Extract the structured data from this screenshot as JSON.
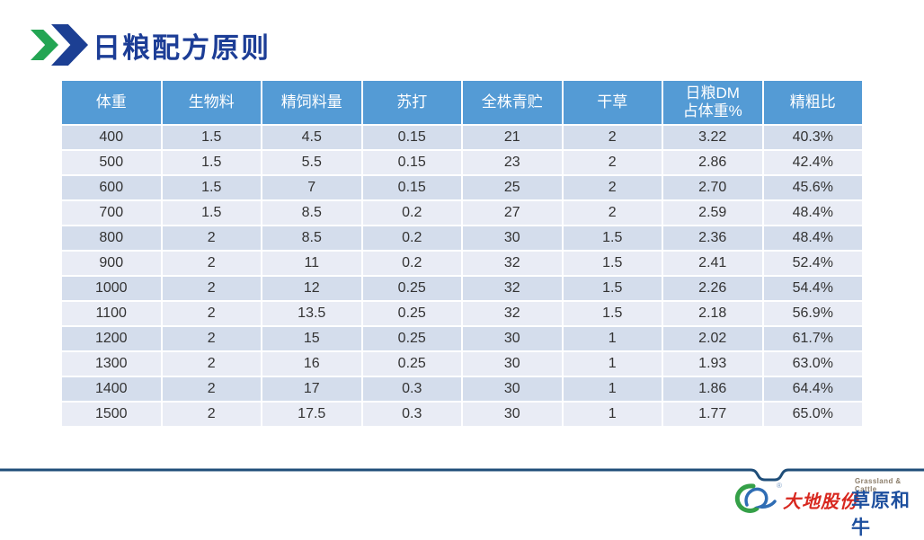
{
  "title": "日粮配方原则",
  "table": {
    "headers": [
      "体重",
      "生物料",
      "精饲料量",
      "苏打",
      "全株青贮",
      "干草",
      "日粮DM\n占体重%",
      "精粗比"
    ],
    "rows": [
      [
        "400",
        "1.5",
        "4.5",
        "0.15",
        "21",
        "2",
        "3.22",
        "40.3%"
      ],
      [
        "500",
        "1.5",
        "5.5",
        "0.15",
        "23",
        "2",
        "2.86",
        "42.4%"
      ],
      [
        "600",
        "1.5",
        "7",
        "0.15",
        "25",
        "2",
        "2.70",
        "45.6%"
      ],
      [
        "700",
        "1.5",
        "8.5",
        "0.2",
        "27",
        "2",
        "2.59",
        "48.4%"
      ],
      [
        "800",
        "2",
        "8.5",
        "0.2",
        "30",
        "1.5",
        "2.36",
        "48.4%"
      ],
      [
        "900",
        "2",
        "11",
        "0.2",
        "32",
        "1.5",
        "2.41",
        "52.4%"
      ],
      [
        "1000",
        "2",
        "12",
        "0.25",
        "32",
        "1.5",
        "2.26",
        "54.4%"
      ],
      [
        "1100",
        "2",
        "13.5",
        "0.25",
        "32",
        "1.5",
        "2.18",
        "56.9%"
      ],
      [
        "1200",
        "2",
        "15",
        "0.25",
        "30",
        "1",
        "2.02",
        "61.7%"
      ],
      [
        "1300",
        "2",
        "16",
        "0.25",
        "30",
        "1",
        "1.93",
        "63.0%"
      ],
      [
        "1400",
        "2",
        "17",
        "0.3",
        "30",
        "1",
        "1.86",
        "64.4%"
      ],
      [
        "1500",
        "2",
        "17.5",
        "0.3",
        "30",
        "1",
        "1.77",
        "65.0%"
      ]
    ]
  },
  "footer": {
    "company_name": "大地股份",
    "brand_name": "草原和牛",
    "brand_subtitle": "Grassland & Cattle",
    "registered_mark": "®"
  },
  "colors": {
    "header_bg": "#549bd5",
    "row_band_dark": "#d4ddec",
    "row_band_light": "#e9ecf5",
    "title_blue": "#1c3d96",
    "chevron_green": "#23a553",
    "chevron_blue": "#1c3f93",
    "footer_line": "#1f4e79",
    "company_red": "#d8281f",
    "brand_blue": "#1d4f9e"
  }
}
